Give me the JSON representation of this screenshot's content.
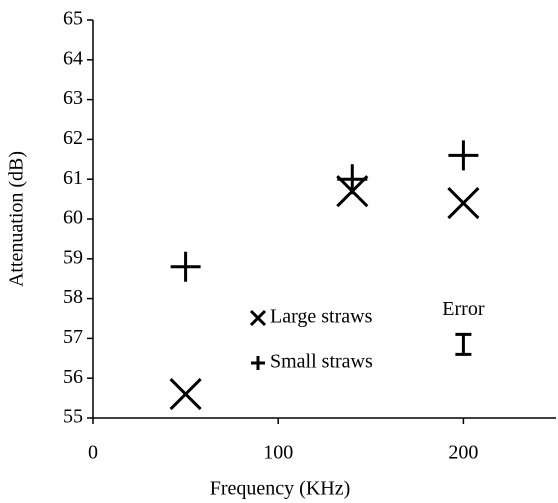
{
  "chart_data": {
    "type": "scatter",
    "xlabel": "Frequency (KHz)",
    "ylabel": "Attenuation (dB)",
    "xlim": [
      0,
      250
    ],
    "xticks": [
      0,
      100,
      200
    ],
    "ylim": [
      55,
      65
    ],
    "yticks": [
      55,
      56,
      57,
      58,
      59,
      60,
      61,
      62,
      63,
      64,
      65
    ],
    "grid": false,
    "legend": "center",
    "series": [
      {
        "name": "Large straws",
        "marker": "x",
        "color": "#000000",
        "x": [
          50,
          140,
          200
        ],
        "values": [
          55.6,
          60.7,
          60.4
        ]
      },
      {
        "name": "Small straws",
        "marker": "+",
        "color": "#000000",
        "x": [
          50,
          140,
          200
        ],
        "values": [
          58.8,
          61.0,
          61.6
        ]
      }
    ],
    "error_bar": {
      "label": "Error",
      "x": 200,
      "y": 56.85,
      "error": 0.25
    }
  }
}
